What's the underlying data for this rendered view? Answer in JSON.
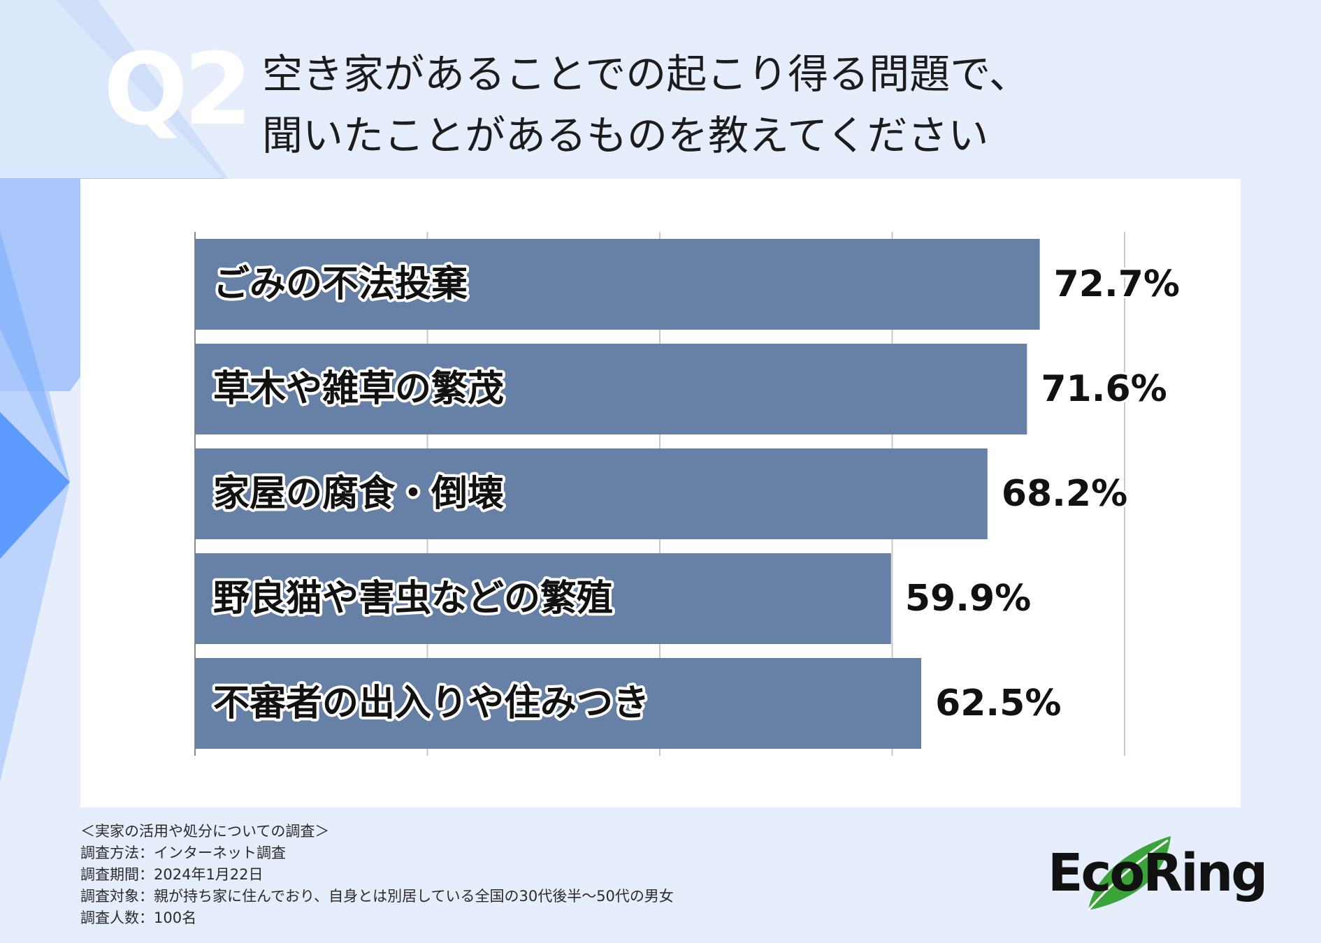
{
  "header": {
    "q_number": "Q2",
    "question_line1": "空き家があることでの起こり得る問題で、",
    "question_line2": "聞いたことがあるものを教えてください"
  },
  "chart_data": {
    "type": "bar",
    "orientation": "horizontal",
    "categories": [
      "ごみの不法投棄",
      "草木や雑草の繁茂",
      "家屋の腐食・倒壊",
      "野良猫や害虫などの繁殖",
      "不審者の出入りや住みつき"
    ],
    "values": [
      72.7,
      71.6,
      68.2,
      59.9,
      62.5
    ],
    "data_labels": [
      "72.7%",
      "71.6%",
      "68.2%",
      "59.9%",
      "62.5%"
    ],
    "xlim": [
      0,
      80
    ],
    "grid": true,
    "bar_color": "#6680a6"
  },
  "footnote": {
    "title": "＜実家の活用や処分についての調査＞",
    "method": "調査方法：インターネット調査",
    "period": "調査期間：2024年1月22日",
    "target": "調査対象：親が持ち家に住んでおり、自身とは別居している全国の30代後半〜50代の男女",
    "count": "調査人数：100名"
  },
  "logo": {
    "text": "EcoRing",
    "leaf_color": "#3aa33a"
  },
  "colors": {
    "background": "#e6eefb",
    "deco_blue": "#5e9bff",
    "deco_light": "#bcd3fb"
  }
}
